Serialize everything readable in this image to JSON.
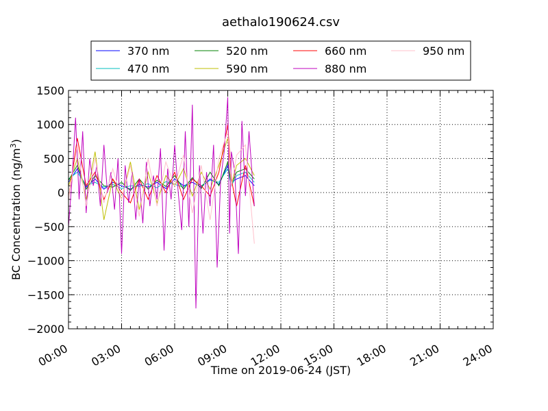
{
  "chart_data": {
    "type": "line",
    "title": "aethalo190624.csv",
    "xlabel": "Time on 2019-06-24 (JST)",
    "ylabel": "BC Concentration (ng/m",
    "ylabel_superscript": "3",
    "ylabel_suffix": ")",
    "xlim_hours": [
      0,
      24
    ],
    "ylim": [
      -2000,
      1500
    ],
    "x_ticks": [
      "00:00",
      "03:00",
      "06:00",
      "09:00",
      "12:00",
      "15:00",
      "18:00",
      "21:00",
      "24:00"
    ],
    "y_ticks": [
      "1500",
      "1000",
      "500",
      "0",
      "−500",
      "−1000",
      "−1500",
      "−2000"
    ],
    "grid": true,
    "legend_position": "top",
    "series": [
      {
        "name": "370 nm",
        "color": "#0000ff",
        "x_hours": [
          0.0,
          0.5,
          1.0,
          1.5,
          2.0,
          2.5,
          3.0,
          3.5,
          4.0,
          4.5,
          5.0,
          5.5,
          6.0,
          6.5,
          7.0,
          7.5,
          8.0,
          8.5,
          9.0,
          9.2,
          9.5,
          10.0,
          10.5
        ],
        "values": [
          150,
          350,
          80,
          200,
          50,
          150,
          100,
          50,
          120,
          80,
          150,
          60,
          200,
          100,
          150,
          80,
          200,
          120,
          400,
          150,
          200,
          250,
          100
        ]
      },
      {
        "name": "470 nm",
        "color": "#00bfbf",
        "x_hours": [
          0.0,
          0.5,
          1.0,
          1.5,
          2.0,
          2.5,
          3.0,
          3.5,
          4.0,
          4.5,
          5.0,
          5.5,
          6.0,
          6.5,
          7.0,
          7.5,
          8.0,
          8.5,
          9.0,
          9.2,
          9.5,
          10.0,
          10.5
        ],
        "values": [
          200,
          300,
          100,
          150,
          80,
          120,
          60,
          100,
          90,
          130,
          70,
          160,
          120,
          80,
          200,
          100,
          180,
          150,
          350,
          100,
          250,
          300,
          150
        ]
      },
      {
        "name": "520 nm",
        "color": "#008000",
        "x_hours": [
          0.0,
          0.5,
          1.0,
          1.5,
          2.0,
          2.5,
          3.0,
          3.5,
          4.0,
          4.5,
          5.0,
          5.5,
          6.0,
          6.5,
          7.0,
          7.5,
          8.0,
          8.5,
          9.0,
          9.2,
          9.5,
          10.0,
          10.5
        ],
        "values": [
          180,
          400,
          50,
          250,
          100,
          80,
          150,
          30,
          200,
          50,
          180,
          90,
          250,
          50,
          220,
          60,
          300,
          100,
          450,
          120,
          300,
          350,
          200
        ]
      },
      {
        "name": "590 nm",
        "color": "#bfbf00",
        "x_hours": [
          0.0,
          0.5,
          1.0,
          1.5,
          2.0,
          2.5,
          3.0,
          3.5,
          4.0,
          4.5,
          5.0,
          5.5,
          6.0,
          6.5,
          7.0,
          7.5,
          8.0,
          8.5,
          9.0,
          9.2,
          9.5,
          10.0,
          10.5
        ],
        "values": [
          100,
          500,
          -100,
          600,
          -400,
          200,
          -100,
          450,
          -250,
          300,
          -150,
          250,
          100,
          350,
          -50,
          300,
          50,
          400,
          800,
          100,
          400,
          500,
          250
        ]
      },
      {
        "name": "660 nm",
        "color": "#ff0000",
        "x_hours": [
          0.0,
          0.5,
          1.0,
          1.5,
          2.0,
          2.5,
          3.0,
          3.5,
          4.0,
          4.5,
          5.0,
          5.5,
          6.0,
          6.5,
          7.0,
          7.5,
          8.0,
          8.5,
          9.0,
          9.2,
          9.5,
          10.0,
          10.5
        ],
        "values": [
          -100,
          800,
          100,
          300,
          -100,
          200,
          0,
          -150,
          200,
          -100,
          250,
          0,
          300,
          -100,
          200,
          100,
          -50,
          300,
          1000,
          200,
          -200,
          400,
          -200
        ]
      },
      {
        "name": "880 nm",
        "color": "#bf00bf",
        "x_hours": [
          0.0,
          0.2,
          0.4,
          0.6,
          0.8,
          1.0,
          1.2,
          1.4,
          1.6,
          1.8,
          2.0,
          2.2,
          2.4,
          2.6,
          2.8,
          3.0,
          3.2,
          3.4,
          3.6,
          3.8,
          4.0,
          4.2,
          4.4,
          4.6,
          4.8,
          5.0,
          5.2,
          5.4,
          5.6,
          5.8,
          6.0,
          6.2,
          6.4,
          6.6,
          6.8,
          7.0,
          7.2,
          7.4,
          7.6,
          7.8,
          8.0,
          8.2,
          8.4,
          8.6,
          8.8,
          9.0,
          9.1,
          9.2,
          9.4,
          9.6,
          9.8,
          10.0,
          10.2,
          10.5
        ],
        "values": [
          -500,
          200,
          1100,
          -100,
          900,
          -300,
          500,
          100,
          400,
          -200,
          700,
          0,
          300,
          -250,
          500,
          -900,
          400,
          -150,
          300,
          -400,
          200,
          -450,
          450,
          -200,
          250,
          -100,
          650,
          -850,
          350,
          -100,
          700,
          0,
          -550,
          900,
          -500,
          1290,
          -1700,
          400,
          -600,
          300,
          -200,
          700,
          -1100,
          200,
          600,
          1400,
          -600,
          600,
          300,
          -900,
          1050,
          -50,
          900,
          -200
        ]
      },
      {
        "name": "950 nm",
        "color": "#ffc0cb",
        "x_hours": [
          0.0,
          0.5,
          1.0,
          1.5,
          2.0,
          2.5,
          3.0,
          3.5,
          4.0,
          4.5,
          5.0,
          5.5,
          6.0,
          6.5,
          7.0,
          7.5,
          8.0,
          8.5,
          9.0,
          9.2,
          9.5,
          10.0,
          10.5
        ],
        "values": [
          -100,
          700,
          -200,
          500,
          -150,
          350,
          -100,
          400,
          -350,
          500,
          -200,
          450,
          100,
          550,
          -300,
          400,
          -400,
          500,
          900,
          100,
          550,
          700,
          -750
        ]
      }
    ]
  }
}
